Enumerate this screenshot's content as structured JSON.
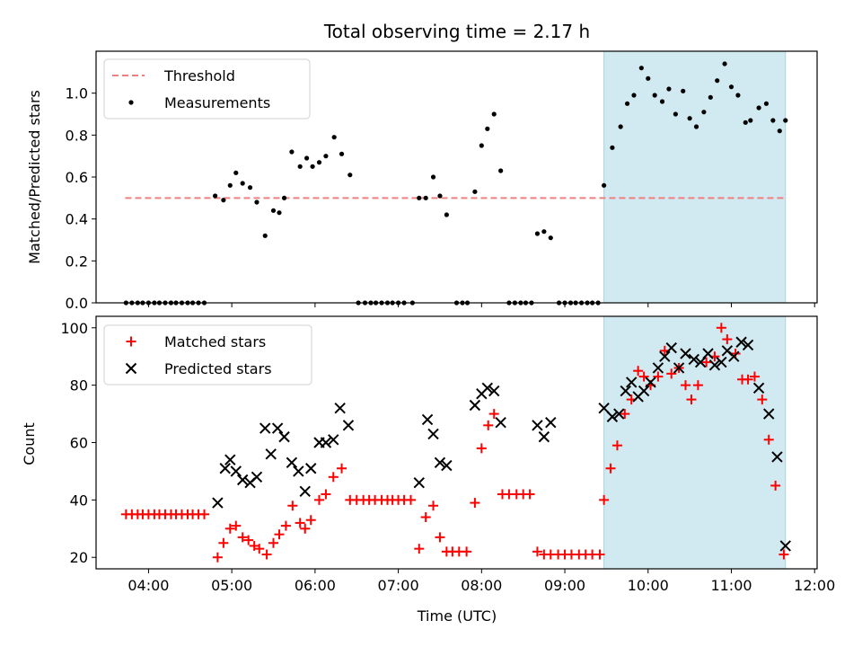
{
  "chart_data": [
    {
      "type": "scatter",
      "title": "Total observing time = 2.17 h",
      "xlabel": "",
      "ylabel": "Matched/Predicted stars",
      "ylim": [
        0,
        1.2
      ],
      "yticks": [
        "0.0",
        "0.2",
        "0.4",
        "0.6",
        "0.8",
        "1.0"
      ],
      "shaded_region": {
        "x_start": 9.47,
        "x_end": 11.65,
        "color": "#d1e9f0"
      },
      "legend_position": "top-left",
      "series": [
        {
          "name": "Threshold",
          "kind": "dashed-line",
          "color": "#f08080",
          "x_start": 3.72,
          "x_end": 11.65,
          "y": 0.5
        },
        {
          "name": "Measurements",
          "kind": "dot",
          "color": "#000000",
          "points": [
            [
              3.73,
              0
            ],
            [
              3.8,
              0
            ],
            [
              3.87,
              0
            ],
            [
              3.93,
              0
            ],
            [
              4.0,
              0
            ],
            [
              4.07,
              0
            ],
            [
              4.13,
              0
            ],
            [
              4.2,
              0
            ],
            [
              4.27,
              0
            ],
            [
              4.33,
              0
            ],
            [
              4.4,
              0
            ],
            [
              4.47,
              0
            ],
            [
              4.53,
              0
            ],
            [
              4.6,
              0
            ],
            [
              4.67,
              0
            ],
            [
              4.8,
              0.51
            ],
            [
              4.9,
              0.49
            ],
            [
              4.98,
              0.56
            ],
            [
              5.05,
              0.62
            ],
            [
              5.13,
              0.57
            ],
            [
              5.22,
              0.55
            ],
            [
              5.3,
              0.48
            ],
            [
              5.4,
              0.32
            ],
            [
              5.5,
              0.44
            ],
            [
              5.57,
              0.43
            ],
            [
              5.63,
              0.5
            ],
            [
              5.72,
              0.72
            ],
            [
              5.82,
              0.65
            ],
            [
              5.9,
              0.69
            ],
            [
              5.97,
              0.65
            ],
            [
              6.05,
              0.67
            ],
            [
              6.13,
              0.7
            ],
            [
              6.23,
              0.79
            ],
            [
              6.32,
              0.71
            ],
            [
              6.42,
              0.61
            ],
            [
              6.52,
              0
            ],
            [
              6.6,
              0
            ],
            [
              6.67,
              0
            ],
            [
              6.73,
              0
            ],
            [
              6.8,
              0
            ],
            [
              6.87,
              0
            ],
            [
              6.93,
              0
            ],
            [
              7.0,
              0
            ],
            [
              7.07,
              0
            ],
            [
              7.17,
              0
            ],
            [
              7.25,
              0.5
            ],
            [
              7.33,
              0.5
            ],
            [
              7.42,
              0.6
            ],
            [
              7.5,
              0.51
            ],
            [
              7.58,
              0.42
            ],
            [
              7.7,
              0
            ],
            [
              7.77,
              0
            ],
            [
              7.83,
              0
            ],
            [
              7.92,
              0.53
            ],
            [
              8.0,
              0.75
            ],
            [
              8.07,
              0.83
            ],
            [
              8.15,
              0.9
            ],
            [
              8.23,
              0.63
            ],
            [
              8.33,
              0
            ],
            [
              8.4,
              0
            ],
            [
              8.47,
              0
            ],
            [
              8.53,
              0
            ],
            [
              8.6,
              0
            ],
            [
              8.67,
              0.33
            ],
            [
              8.75,
              0.34
            ],
            [
              8.83,
              0.31
            ],
            [
              8.93,
              0
            ],
            [
              9.0,
              0
            ],
            [
              9.07,
              0
            ],
            [
              9.13,
              0
            ],
            [
              9.2,
              0
            ],
            [
              9.27,
              0
            ],
            [
              9.33,
              0
            ],
            [
              9.4,
              0
            ],
            [
              9.47,
              0.56
            ],
            [
              9.57,
              0.74
            ],
            [
              9.67,
              0.84
            ],
            [
              9.75,
              0.95
            ],
            [
              9.83,
              0.99
            ],
            [
              9.92,
              1.12
            ],
            [
              10.0,
              1.07
            ],
            [
              10.08,
              0.99
            ],
            [
              10.17,
              0.96
            ],
            [
              10.25,
              1.02
            ],
            [
              10.33,
              0.9
            ],
            [
              10.42,
              1.01
            ],
            [
              10.5,
              0.88
            ],
            [
              10.58,
              0.84
            ],
            [
              10.67,
              0.91
            ],
            [
              10.75,
              0.98
            ],
            [
              10.83,
              1.06
            ],
            [
              10.92,
              1.14
            ],
            [
              11.0,
              1.03
            ],
            [
              11.08,
              0.99
            ],
            [
              11.17,
              0.86
            ],
            [
              11.23,
              0.87
            ],
            [
              11.33,
              0.93
            ],
            [
              11.42,
              0.95
            ],
            [
              11.5,
              0.87
            ],
            [
              11.58,
              0.82
            ],
            [
              11.65,
              0.87
            ]
          ]
        }
      ]
    },
    {
      "type": "scatter",
      "title": "",
      "xlabel": "Time (UTC)",
      "ylabel": "Count",
      "ylim": [
        16,
        104
      ],
      "xlim": [
        3.37,
        12.03
      ],
      "xtick_values": [
        4,
        5,
        6,
        7,
        8,
        9,
        10,
        11,
        12
      ],
      "xticks": [
        "04:00",
        "05:00",
        "06:00",
        "07:00",
        "08:00",
        "09:00",
        "10:00",
        "11:00",
        "12:00"
      ],
      "yticks": [
        "20",
        "40",
        "60",
        "80",
        "100"
      ],
      "shaded_region": {
        "x_start": 9.47,
        "x_end": 11.65,
        "color": "#d1e9f0"
      },
      "legend_position": "top-left",
      "series": [
        {
          "name": "Matched stars",
          "kind": "plus",
          "color": "#ff0000",
          "points": [
            [
              3.73,
              35
            ],
            [
              3.8,
              35
            ],
            [
              3.87,
              35
            ],
            [
              3.93,
              35
            ],
            [
              4.0,
              35
            ],
            [
              4.07,
              35
            ],
            [
              4.13,
              35
            ],
            [
              4.2,
              35
            ],
            [
              4.27,
              35
            ],
            [
              4.33,
              35
            ],
            [
              4.4,
              35
            ],
            [
              4.47,
              35
            ],
            [
              4.53,
              35
            ],
            [
              4.6,
              35
            ],
            [
              4.67,
              35
            ],
            [
              4.83,
              20
            ],
            [
              4.9,
              25
            ],
            [
              4.98,
              30
            ],
            [
              5.05,
              31
            ],
            [
              5.13,
              27
            ],
            [
              5.2,
              26
            ],
            [
              5.27,
              24
            ],
            [
              5.33,
              23
            ],
            [
              5.42,
              21
            ],
            [
              5.5,
              25
            ],
            [
              5.57,
              28
            ],
            [
              5.65,
              31
            ],
            [
              5.73,
              38
            ],
            [
              5.82,
              32
            ],
            [
              5.88,
              30
            ],
            [
              5.95,
              33
            ],
            [
              6.05,
              40
            ],
            [
              6.13,
              42
            ],
            [
              6.22,
              48
            ],
            [
              6.32,
              51
            ],
            [
              6.42,
              40
            ],
            [
              6.5,
              40
            ],
            [
              6.58,
              40
            ],
            [
              6.65,
              40
            ],
            [
              6.72,
              40
            ],
            [
              6.8,
              40
            ],
            [
              6.87,
              40
            ],
            [
              6.93,
              40
            ],
            [
              7.0,
              40
            ],
            [
              7.07,
              40
            ],
            [
              7.15,
              40
            ],
            [
              7.25,
              23
            ],
            [
              7.33,
              34
            ],
            [
              7.42,
              38
            ],
            [
              7.5,
              27
            ],
            [
              7.58,
              22
            ],
            [
              7.65,
              22
            ],
            [
              7.73,
              22
            ],
            [
              7.82,
              22
            ],
            [
              7.92,
              39
            ],
            [
              8.0,
              58
            ],
            [
              8.08,
              66
            ],
            [
              8.15,
              70
            ],
            [
              8.25,
              42
            ],
            [
              8.33,
              42
            ],
            [
              8.42,
              42
            ],
            [
              8.5,
              42
            ],
            [
              8.58,
              42
            ],
            [
              8.67,
              22
            ],
            [
              8.75,
              21
            ],
            [
              8.83,
              21
            ],
            [
              8.92,
              21
            ],
            [
              9.0,
              21
            ],
            [
              9.08,
              21
            ],
            [
              9.17,
              21
            ],
            [
              9.25,
              21
            ],
            [
              9.33,
              21
            ],
            [
              9.42,
              21
            ],
            [
              9.47,
              40
            ],
            [
              9.55,
              51
            ],
            [
              9.63,
              59
            ],
            [
              9.72,
              70
            ],
            [
              9.8,
              75
            ],
            [
              9.88,
              85
            ],
            [
              9.95,
              83
            ],
            [
              10.03,
              80
            ],
            [
              10.12,
              83
            ],
            [
              10.2,
              92
            ],
            [
              10.28,
              84
            ],
            [
              10.37,
              86
            ],
            [
              10.45,
              80
            ],
            [
              10.52,
              75
            ],
            [
              10.6,
              80
            ],
            [
              10.7,
              88
            ],
            [
              10.8,
              90
            ],
            [
              10.88,
              100
            ],
            [
              10.95,
              96
            ],
            [
              11.05,
              91
            ],
            [
              11.13,
              82
            ],
            [
              11.2,
              82
            ],
            [
              11.28,
              83
            ],
            [
              11.37,
              75
            ],
            [
              11.45,
              61
            ],
            [
              11.53,
              45
            ],
            [
              11.63,
              21
            ]
          ]
        },
        {
          "name": "Predicted stars",
          "kind": "x",
          "color": "#000000",
          "points": [
            [
              4.83,
              39
            ],
            [
              4.92,
              51
            ],
            [
              4.98,
              54
            ],
            [
              5.05,
              50
            ],
            [
              5.13,
              47
            ],
            [
              5.22,
              46
            ],
            [
              5.3,
              48
            ],
            [
              5.4,
              65
            ],
            [
              5.47,
              56
            ],
            [
              5.55,
              65
            ],
            [
              5.63,
              62
            ],
            [
              5.72,
              53
            ],
            [
              5.8,
              50
            ],
            [
              5.88,
              43
            ],
            [
              5.95,
              51
            ],
            [
              6.05,
              60
            ],
            [
              6.13,
              60
            ],
            [
              6.22,
              61
            ],
            [
              6.3,
              72
            ],
            [
              6.4,
              66
            ],
            [
              7.25,
              46
            ],
            [
              7.35,
              68
            ],
            [
              7.42,
              63
            ],
            [
              7.5,
              53
            ],
            [
              7.58,
              52
            ],
            [
              7.92,
              73
            ],
            [
              8.0,
              77
            ],
            [
              8.07,
              79
            ],
            [
              8.15,
              78
            ],
            [
              8.23,
              67
            ],
            [
              8.67,
              66
            ],
            [
              8.75,
              62
            ],
            [
              8.83,
              67
            ],
            [
              9.47,
              72
            ],
            [
              9.57,
              69
            ],
            [
              9.65,
              70
            ],
            [
              9.73,
              78
            ],
            [
              9.8,
              81
            ],
            [
              9.88,
              76
            ],
            [
              9.95,
              78
            ],
            [
              10.03,
              81
            ],
            [
              10.12,
              86
            ],
            [
              10.2,
              90
            ],
            [
              10.28,
              93
            ],
            [
              10.37,
              86
            ],
            [
              10.45,
              91
            ],
            [
              10.55,
              89
            ],
            [
              10.63,
              88
            ],
            [
              10.72,
              91
            ],
            [
              10.8,
              87
            ],
            [
              10.88,
              88
            ],
            [
              10.95,
              92
            ],
            [
              11.03,
              90
            ],
            [
              11.12,
              95
            ],
            [
              11.2,
              94
            ],
            [
              11.33,
              79
            ],
            [
              11.45,
              70
            ],
            [
              11.55,
              55
            ],
            [
              11.65,
              24
            ]
          ]
        }
      ]
    }
  ]
}
